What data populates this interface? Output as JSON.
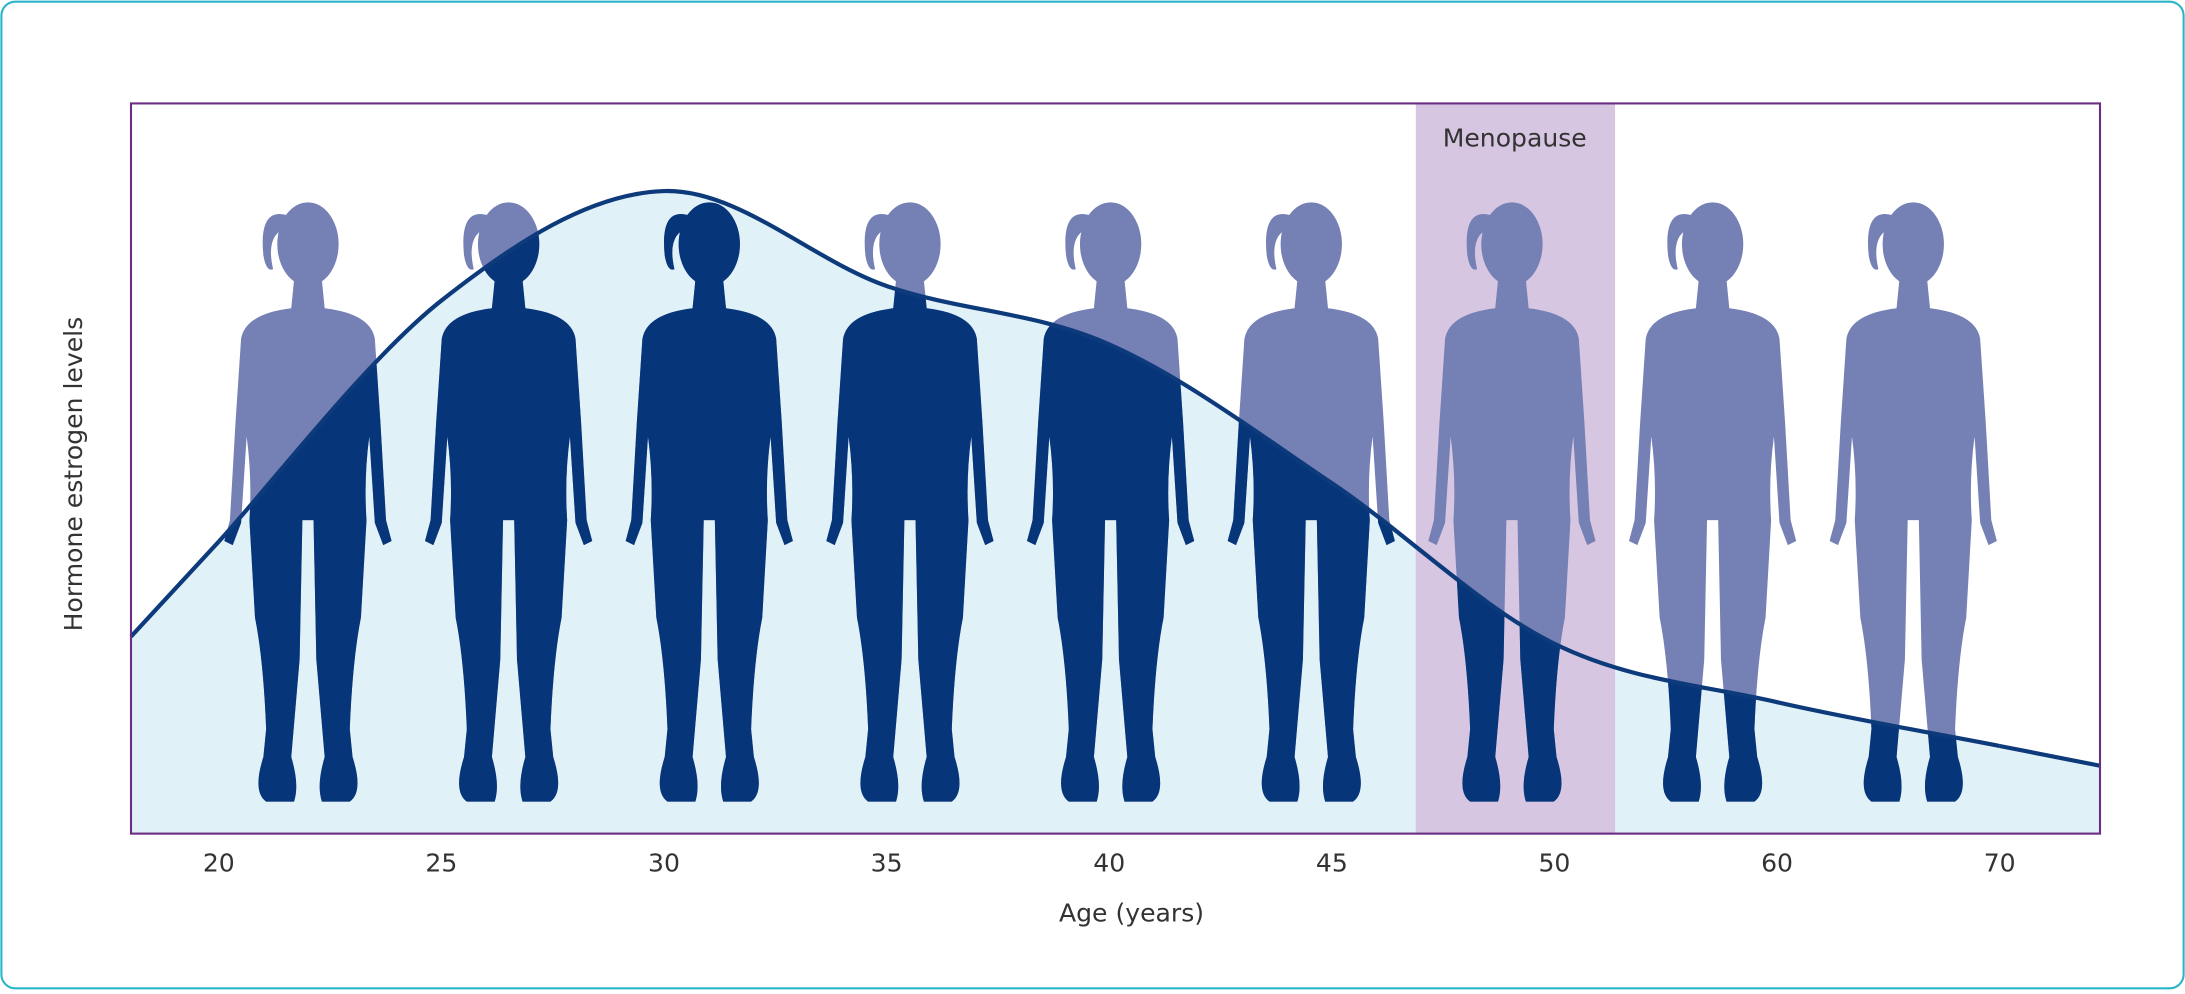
{
  "chart_data": {
    "type": "area",
    "x_label": "Age (years)",
    "y_label": "Hormone estrogen levels",
    "annotation": "Menopause",
    "categories": [
      "20",
      "25",
      "30",
      "35",
      "40",
      "45",
      "50",
      "60",
      "70"
    ],
    "values": [
      40,
      73,
      88,
      75,
      67,
      48,
      26,
      18,
      12
    ],
    "ylim": [
      0,
      100
    ],
    "color": "#0d3a7a",
    "fill": "#e0f1f8"
  }
}
